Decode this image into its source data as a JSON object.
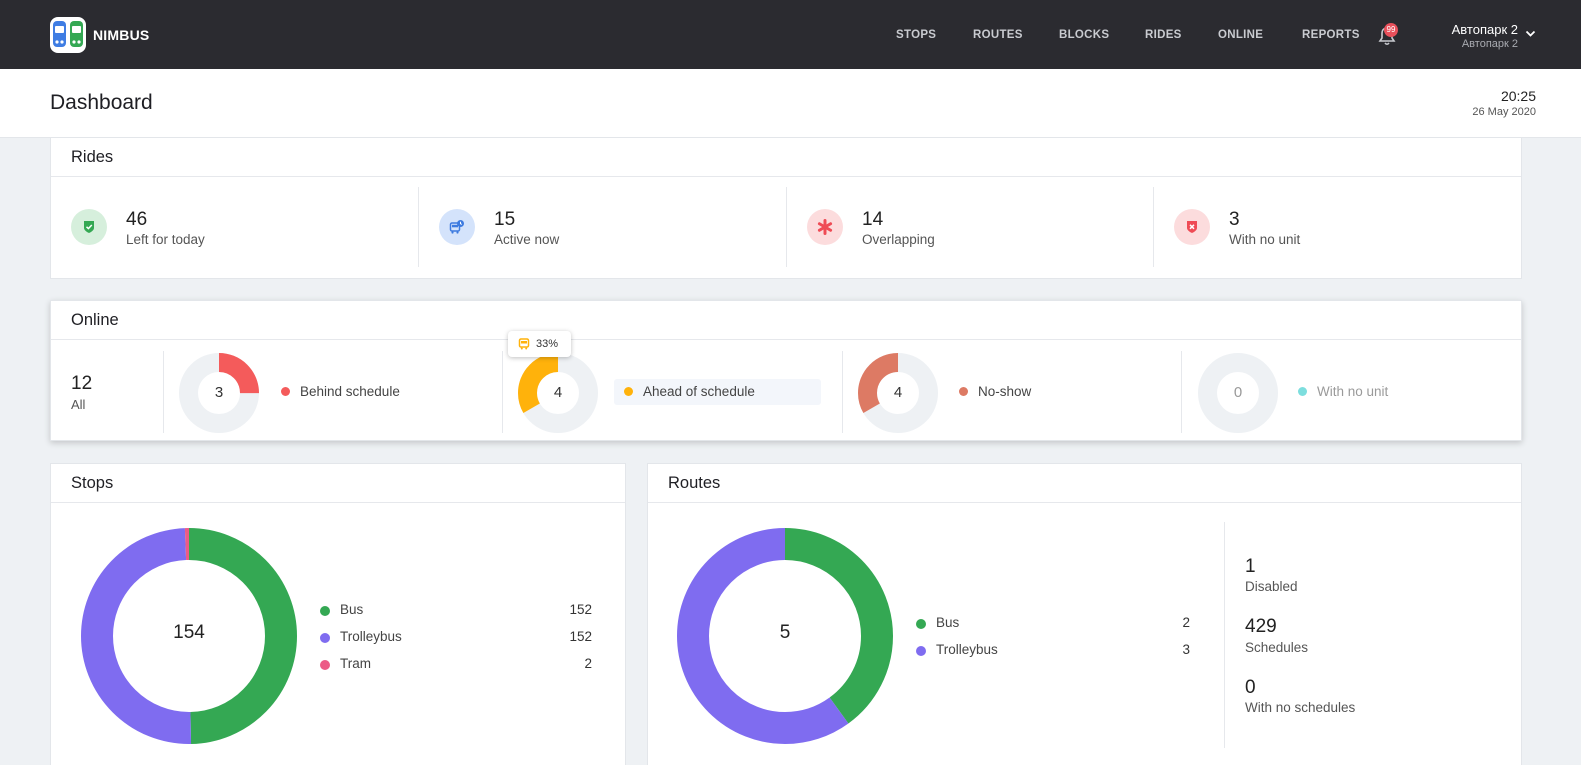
{
  "header": {
    "brand": "NIMBUS",
    "nav": [
      "STOPS",
      "ROUTES",
      "BLOCKS",
      "RIDES",
      "ONLINE",
      "REPORTS"
    ],
    "notifications_count": "99",
    "account_name": "Автопарк 2",
    "account_sub": "Автопарк 2"
  },
  "titlebar": {
    "title": "Dashboard",
    "time": "20:25",
    "date": "26 May 2020"
  },
  "rides": {
    "title": "Rides",
    "items": [
      {
        "value": "46",
        "label": "Left for today",
        "icon": "shield-check-icon",
        "color": "#34a853",
        "bg": "#d6efdc"
      },
      {
        "value": "15",
        "label": "Active now",
        "icon": "bus-clock-icon",
        "color": "#3d7be0",
        "bg": "#d4e3fb"
      },
      {
        "value": "14",
        "label": "Overlapping",
        "icon": "asterisk-icon",
        "color": "#ef4b55",
        "bg": "#fcdcdd"
      },
      {
        "value": "3",
        "label": "With no unit",
        "icon": "shield-x-icon",
        "color": "#ef4b55",
        "bg": "#fcdcdd"
      }
    ]
  },
  "online": {
    "title": "Online",
    "all_value": "12",
    "all_label": "All",
    "tooltip": "33%",
    "items": [
      {
        "value": "3",
        "label": "Behind schedule",
        "color": "#f45b5b",
        "fraction": 0.25
      },
      {
        "value": "4",
        "label": "Ahead of schedule",
        "color": "#ffb20b",
        "fraction": 0.333
      },
      {
        "value": "4",
        "label": "No-show",
        "color": "#dd7a64",
        "fraction": 0.333
      },
      {
        "value": "0",
        "label": "With no unit",
        "color": "#7ddede",
        "fraction": 0
      }
    ]
  },
  "stops": {
    "title": "Stops",
    "total": "154",
    "items": [
      {
        "label": "Bus",
        "value": "152",
        "color": "#34a853"
      },
      {
        "label": "Trolleybus",
        "value": "152",
        "color": "#7f6cf0"
      },
      {
        "label": "Tram",
        "value": "2",
        "color": "#ec5b86"
      }
    ]
  },
  "routes": {
    "title": "Routes",
    "total": "5",
    "items": [
      {
        "label": "Bus",
        "value": "2",
        "color": "#34a853"
      },
      {
        "label": "Trolleybus",
        "value": "3",
        "color": "#7f6cf0"
      }
    ],
    "stats": [
      {
        "value": "1",
        "label": "Disabled"
      },
      {
        "value": "429",
        "label": "Schedules"
      },
      {
        "value": "0",
        "label": "With no schedules"
      }
    ]
  }
}
